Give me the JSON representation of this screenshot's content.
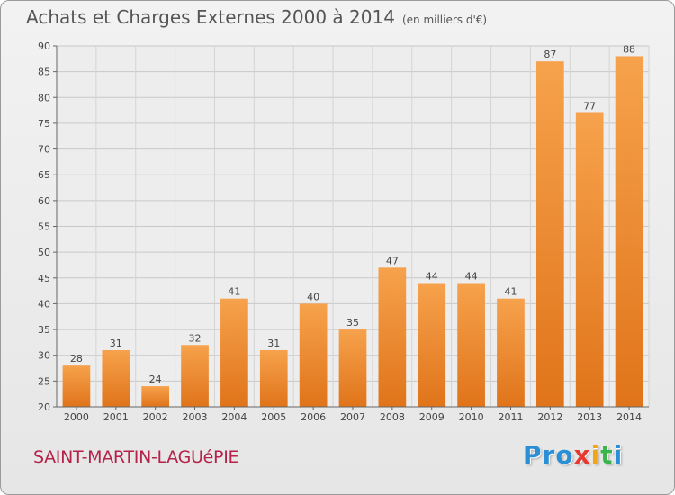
{
  "header": {
    "title": "Achats et Charges Externes 2000 à 2014",
    "subtitle": "(en milliers d'€)"
  },
  "footer": {
    "commune": "SAINT-MARTIN-LAGUéPIE",
    "logo_letters": [
      "P",
      "r",
      "o",
      "x",
      "i",
      "t",
      "i"
    ],
    "logo_colors": [
      "#2a8fd4",
      "#2a8fd4",
      "#2a8fd4",
      "#e8382d",
      "#f2a516",
      "#39b54a",
      "#2a8fd4"
    ]
  },
  "chart_data": {
    "type": "bar",
    "title": "Achats et Charges Externes 2000 à 2014",
    "subtitle": "(en milliers d'€)",
    "xlabel": "",
    "ylabel": "",
    "categories": [
      "2000",
      "2001",
      "2002",
      "2003",
      "2004",
      "2005",
      "2006",
      "2007",
      "2008",
      "2009",
      "2010",
      "2011",
      "2012",
      "2013",
      "2014"
    ],
    "values": [
      28,
      31,
      24,
      32,
      41,
      31,
      40,
      35,
      47,
      44,
      44,
      41,
      87,
      77,
      88
    ],
    "ylim": [
      20,
      90
    ],
    "yticks": [
      20,
      25,
      30,
      35,
      40,
      45,
      50,
      55,
      60,
      65,
      70,
      75,
      80,
      85,
      90
    ],
    "grid": true,
    "bar_color": "#f0923a"
  }
}
